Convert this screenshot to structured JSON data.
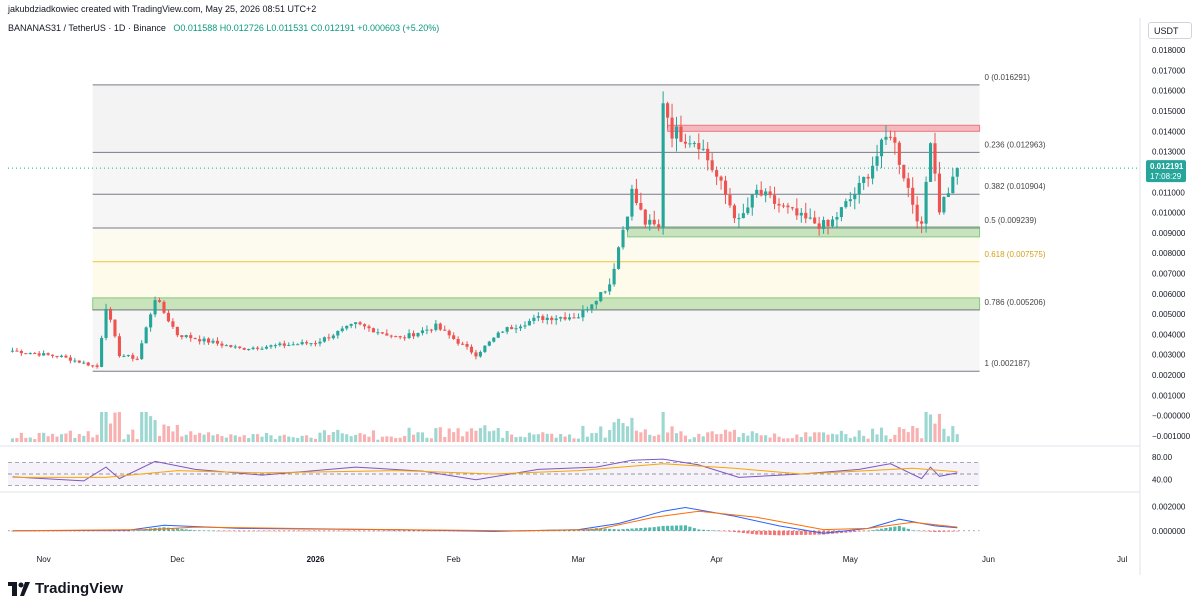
{
  "header": {
    "credit": "jakubdziadkowiec created with TradingView.com, May 25, 2026 08:51 UTC+2",
    "symbol": "BANANAS31 / TetherUS · 1D · Binance",
    "ohlc": "O0.011588  H0.012726  L0.011531  C0.012191  +0.000603 (+5.20%)",
    "currency": "USDT"
  },
  "footer": {
    "logo_text": "TradingView"
  },
  "colors": {
    "up": "#26a69a",
    "down": "#ef5350",
    "fib_line": "#787b86",
    "fib_0618": "#f0c332",
    "support_zone": "#4caf50",
    "resistance_zone": "#f23645",
    "rsi_line": "#7e57c2",
    "rsi_ma": "#f7a600",
    "macd_line": "#2962ff",
    "signal_line": "#ff6d00"
  },
  "chart_data": [
    {
      "type": "line",
      "subtype": "candlestick",
      "title": "BANANAS31 / TetherUS · 1D · Binance",
      "series": [
        {
          "name": "BANANAS31 / TetherUS",
          "points": [
            {
              "date": "2025-10-25",
              "close": 0.0032
            },
            {
              "date": "2025-11-05",
              "close": 0.0029
            },
            {
              "date": "2025-11-13",
              "close": 0.0024
            },
            {
              "date": "2025-11-15",
              "close": 0.0054
            },
            {
              "date": "2025-11-18",
              "close": 0.003
            },
            {
              "date": "2025-11-22",
              "close": 0.0028
            },
            {
              "date": "2025-11-26",
              "close": 0.0058
            },
            {
              "date": "2025-12-01",
              "close": 0.004
            },
            {
              "date": "2025-12-15",
              "close": 0.0033
            },
            {
              "date": "2026-01-01",
              "close": 0.0036
            },
            {
              "date": "2026-01-10",
              "close": 0.0045
            },
            {
              "date": "2026-01-20",
              "close": 0.0038
            },
            {
              "date": "2026-01-28",
              "close": 0.0044
            },
            {
              "date": "2026-02-06",
              "close": 0.003
            },
            {
              "date": "2026-02-12",
              "close": 0.0042
            },
            {
              "date": "2026-02-20",
              "close": 0.0048
            },
            {
              "date": "2026-03-01",
              "close": 0.0049
            },
            {
              "date": "2026-03-08",
              "close": 0.0065
            },
            {
              "date": "2026-03-13",
              "close": 0.011
            },
            {
              "date": "2026-03-16",
              "close": 0.0095
            },
            {
              "date": "2026-03-19",
              "close": 0.0092
            },
            {
              "date": "2026-03-20",
              "close": 0.0156
            },
            {
              "date": "2026-03-22",
              "close": 0.014
            },
            {
              "date": "2026-03-28",
              "close": 0.0135
            },
            {
              "date": "2026-04-02",
              "close": 0.0113
            },
            {
              "date": "2026-04-06",
              "close": 0.0095
            },
            {
              "date": "2026-04-10",
              "close": 0.011
            },
            {
              "date": "2026-04-20",
              "close": 0.0097
            },
            {
              "date": "2026-04-26",
              "close": 0.0093
            },
            {
              "date": "2026-05-03",
              "close": 0.0112
            },
            {
              "date": "2026-05-10",
              "close": 0.014
            },
            {
              "date": "2026-05-15",
              "close": 0.0105
            },
            {
              "date": "2026-05-17",
              "close": 0.0092
            },
            {
              "date": "2026-05-19",
              "close": 0.0138
            },
            {
              "date": "2026-05-21",
              "close": 0.0102
            },
            {
              "date": "2026-05-24",
              "close": 0.0116
            },
            {
              "date": "2026-05-25",
              "close": 0.012191
            }
          ]
        }
      ],
      "last_price": "0.012191",
      "countdown": "17:08:29",
      "x_labels": [
        {
          "label": "Nov",
          "date": "2025-11-01"
        },
        {
          "label": "Dec",
          "date": "2025-12-01"
        },
        {
          "label": "2026",
          "date": "2026-01-01"
        },
        {
          "label": "Feb",
          "date": "2026-02-01"
        },
        {
          "label": "Mar",
          "date": "2026-03-01"
        },
        {
          "label": "Apr",
          "date": "2026-04-01"
        },
        {
          "label": "May",
          "date": "2026-05-01"
        },
        {
          "label": "Jun",
          "date": "2026-06-01"
        },
        {
          "label": "Jul",
          "date": "2026-07-01"
        }
      ],
      "xlim": [
        "2025-10-24",
        "2026-07-05"
      ],
      "price_axis_labels": [
        "0.018000",
        "0.017000",
        "0.016000",
        "0.015000",
        "0.014000",
        "0.013000",
        "0.012000",
        "0.011000",
        "0.010000",
        "0.009000",
        "0.008000",
        "0.007000",
        "0.006000",
        "0.005000",
        "0.004000",
        "0.003000",
        "0.002000",
        "0.001000",
        "−0.000000",
        "−0.001000"
      ],
      "ylim": [
        -0.0013,
        0.0184
      ],
      "fibonacci": [
        {
          "ratio": "0",
          "label": "0 (0.016291)",
          "price": 0.016291
        },
        {
          "ratio": "0.236",
          "label": "0.236 (0.012963)",
          "price": 0.012963
        },
        {
          "ratio": "0.382",
          "label": "0.382 (0.010904)",
          "price": 0.010904
        },
        {
          "ratio": "0.5",
          "label": "0.5 (0.009239)",
          "price": 0.009239
        },
        {
          "ratio": "0.618",
          "label": "0.618 (0.007575)",
          "price": 0.007575
        },
        {
          "ratio": "0.786",
          "label": "0.786 (0.005206)",
          "price": 0.005206
        },
        {
          "ratio": "1",
          "label": "1 (0.002187)",
          "price": 0.002187
        }
      ],
      "fib_start_date": "2025-11-12",
      "fib_end_date": "2026-05-30",
      "zones": [
        {
          "kind": "resistance",
          "low": 0.014,
          "high": 0.0143,
          "from": "2026-03-21",
          "to": "2026-05-30"
        },
        {
          "kind": "support",
          "low": 0.0088,
          "high": 0.0093,
          "from": "2026-03-12",
          "to": "2026-05-30"
        },
        {
          "kind": "support",
          "low": 0.0052,
          "high": 0.0058,
          "from": "2025-11-12",
          "to": "2026-05-30"
        }
      ]
    },
    {
      "type": "line",
      "subtype": "rsi",
      "ylim": [
        22,
        92
      ],
      "levels": [
        70,
        50,
        30
      ],
      "axis_labels": [
        "80.00",
        "40.00"
      ],
      "series": [
        {
          "points": [
            {
              "date": "2025-10-25",
              "value": 45
            },
            {
              "date": "2025-11-10",
              "value": 38
            },
            {
              "date": "2025-11-15",
              "value": 62
            },
            {
              "date": "2025-11-18",
              "value": 42
            },
            {
              "date": "2025-11-26",
              "value": 72
            },
            {
              "date": "2025-12-05",
              "value": 58
            },
            {
              "date": "2025-12-20",
              "value": 48
            },
            {
              "date": "2026-01-10",
              "value": 62
            },
            {
              "date": "2026-01-25",
              "value": 55
            },
            {
              "date": "2026-02-06",
              "value": 40
            },
            {
              "date": "2026-02-20",
              "value": 58
            },
            {
              "date": "2026-03-05",
              "value": 62
            },
            {
              "date": "2026-03-13",
              "value": 74
            },
            {
              "date": "2026-03-20",
              "value": 76
            },
            {
              "date": "2026-03-28",
              "value": 66
            },
            {
              "date": "2026-04-06",
              "value": 44
            },
            {
              "date": "2026-04-20",
              "value": 50
            },
            {
              "date": "2026-05-03",
              "value": 58
            },
            {
              "date": "2026-05-10",
              "value": 68
            },
            {
              "date": "2026-05-17",
              "value": 42
            },
            {
              "date": "2026-05-19",
              "value": 62
            },
            {
              "date": "2026-05-21",
              "value": 46
            },
            {
              "date": "2026-05-25",
              "value": 52
            }
          ]
        },
        {
          "points": [
            {
              "date": "2025-10-25",
              "value": 44
            },
            {
              "date": "2025-11-15",
              "value": 44
            },
            {
              "date": "2025-12-01",
              "value": 56
            },
            {
              "date": "2025-12-20",
              "value": 52
            },
            {
              "date": "2026-01-20",
              "value": 56
            },
            {
              "date": "2026-02-10",
              "value": 50
            },
            {
              "date": "2026-03-01",
              "value": 56
            },
            {
              "date": "2026-03-20",
              "value": 68
            },
            {
              "date": "2026-04-05",
              "value": 60
            },
            {
              "date": "2026-04-20",
              "value": 50
            },
            {
              "date": "2026-05-05",
              "value": 56
            },
            {
              "date": "2026-05-15",
              "value": 60
            },
            {
              "date": "2026-05-25",
              "value": 54
            }
          ]
        }
      ]
    },
    {
      "type": "line",
      "subtype": "macd",
      "ylim": [
        -0.0014,
        0.003
      ],
      "axis_labels": [
        "0.002000",
        "0.000000"
      ],
      "series": [
        {
          "points": [
            {
              "date": "2025-10-25",
              "value": 0
            },
            {
              "date": "2025-11-20",
              "value": 5e-05
            },
            {
              "date": "2025-11-28",
              "value": 0.00045
            },
            {
              "date": "2025-12-15",
              "value": 0.0002
            },
            {
              "date": "2026-01-20",
              "value": 8e-05
            },
            {
              "date": "2026-02-10",
              "value": -5e-05
            },
            {
              "date": "2026-03-01",
              "value": 0.0001
            },
            {
              "date": "2026-03-10",
              "value": 0.0006
            },
            {
              "date": "2026-03-20",
              "value": 0.0016
            },
            {
              "date": "2026-03-25",
              "value": 0.0019
            },
            {
              "date": "2026-04-05",
              "value": 0.0012
            },
            {
              "date": "2026-04-15",
              "value": 0.0004
            },
            {
              "date": "2026-04-25",
              "value": -0.0002
            },
            {
              "date": "2026-05-05",
              "value": 0.0002
            },
            {
              "date": "2026-05-12",
              "value": 0.00095
            },
            {
              "date": "2026-05-20",
              "value": 0.0004
            },
            {
              "date": "2026-05-25",
              "value": 0.00025
            }
          ]
        },
        {
          "points": [
            {
              "date": "2025-10-25",
              "value": 0
            },
            {
              "date": "2025-11-25",
              "value": 0.0001
            },
            {
              "date": "2025-12-05",
              "value": 0.0003
            },
            {
              "date": "2026-01-10",
              "value": 0.00012
            },
            {
              "date": "2026-02-15",
              "value": 0.0
            },
            {
              "date": "2026-03-05",
              "value": 0.0001
            },
            {
              "date": "2026-03-18",
              "value": 0.0011
            },
            {
              "date": "2026-03-28",
              "value": 0.0016
            },
            {
              "date": "2026-04-10",
              "value": 0.0011
            },
            {
              "date": "2026-04-25",
              "value": 0.0001
            },
            {
              "date": "2026-05-05",
              "value": 0.0002
            },
            {
              "date": "2026-05-15",
              "value": 0.0007
            },
            {
              "date": "2026-05-25",
              "value": 0.0003
            }
          ]
        }
      ]
    }
  ]
}
